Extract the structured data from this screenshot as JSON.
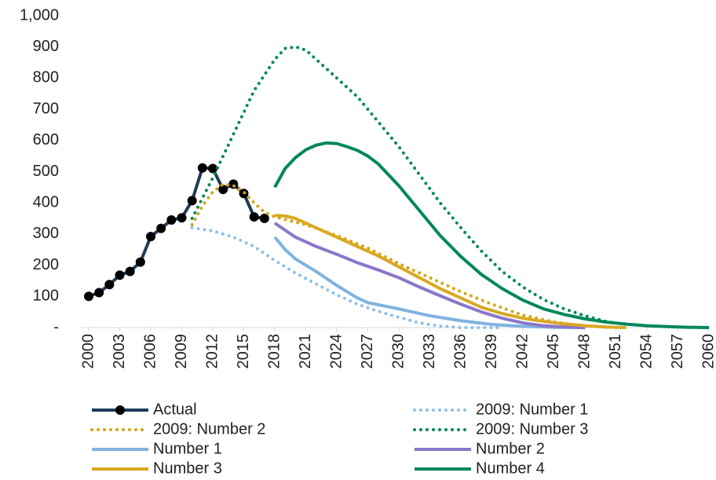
{
  "chart_data": {
    "type": "line",
    "xlim": [
      2000,
      2060
    ],
    "xticks": [
      2000,
      2003,
      2006,
      2009,
      2012,
      2015,
      2018,
      2021,
      2024,
      2027,
      2030,
      2033,
      2036,
      2039,
      2042,
      2045,
      2048,
      2051,
      2054,
      2057,
      2060
    ],
    "ylim": [
      0,
      1000
    ],
    "yticks": [
      {
        "value": 0,
        "label": "-"
      },
      100,
      200,
      300,
      400,
      500,
      600,
      700,
      800,
      900,
      {
        "value": 1000,
        "label": "1,000"
      }
    ],
    "series": [
      {
        "name": "Actual",
        "color": "#1f3b5a",
        "line_style": "solid",
        "marker": "circle",
        "x": [
          2000,
          2001,
          2002,
          2003,
          2004,
          2005,
          2006,
          2007,
          2008,
          2009,
          2010,
          2011,
          2012,
          2013,
          2014,
          2015,
          2016,
          2017
        ],
        "values": [
          100,
          112,
          138,
          168,
          180,
          210,
          292,
          318,
          345,
          352,
          407,
          512,
          510,
          443,
          460,
          430,
          355,
          350
        ]
      },
      {
        "name": "2009: Number 1",
        "color": "#8fbfe6",
        "line_style": "dotted",
        "x": [
          2010,
          2012,
          2014,
          2016,
          2018,
          2020,
          2022,
          2024,
          2026,
          2028,
          2030,
          2032,
          2034,
          2036,
          2040
        ],
        "values": [
          320,
          310,
          290,
          260,
          215,
          175,
          140,
          105,
          75,
          52,
          33,
          15,
          5,
          0,
          0
        ]
      },
      {
        "name": "2009: Number 2",
        "color": "#d4a514",
        "line_style": "dotted",
        "x": [
          2010,
          2011,
          2012,
          2013,
          2014,
          2015,
          2016,
          2017,
          2018,
          2021,
          2024,
          2027,
          2030,
          2033,
          2036,
          2039,
          2042,
          2045,
          2048,
          2051
        ],
        "values": [
          330,
          390,
          435,
          460,
          455,
          435,
          400,
          370,
          355,
          330,
          295,
          255,
          205,
          160,
          115,
          75,
          40,
          18,
          5,
          0
        ]
      },
      {
        "name": "2009: Number 3",
        "color": "#00875a",
        "line_style": "dotted",
        "x": [
          2010,
          2012,
          2014,
          2016,
          2018,
          2019,
          2020,
          2021,
          2022,
          2024,
          2026,
          2028,
          2030,
          2032,
          2034,
          2036,
          2038,
          2040,
          2042,
          2044,
          2046,
          2048,
          2050,
          2051
        ],
        "values": [
          350,
          480,
          620,
          760,
          860,
          895,
          900,
          890,
          860,
          800,
          740,
          660,
          580,
          490,
          400,
          320,
          245,
          180,
          130,
          90,
          60,
          38,
          20,
          14
        ]
      },
      {
        "name": "Number 1",
        "color": "#7fb3e0",
        "line_style": "solid",
        "x": [
          2018,
          2019,
          2020,
          2022,
          2024,
          2026,
          2027,
          2030,
          2033,
          2036,
          2039,
          2042,
          2045,
          2048
        ],
        "values": [
          290,
          250,
          220,
          180,
          135,
          95,
          80,
          60,
          38,
          22,
          10,
          4,
          1,
          0
        ]
      },
      {
        "name": "Number 2",
        "color": "#8a76c9",
        "line_style": "solid",
        "x": [
          2018,
          2020,
          2022,
          2024,
          2026,
          2028,
          2030,
          2032,
          2034,
          2036,
          2038,
          2040,
          2042,
          2044,
          2046,
          2048
        ],
        "values": [
          335,
          290,
          260,
          235,
          208,
          185,
          160,
          130,
          102,
          75,
          50,
          30,
          15,
          6,
          2,
          0
        ]
      },
      {
        "name": "Number 3",
        "color": "#d9a823",
        "line_style": "solid",
        "x": [
          2018,
          2019,
          2020,
          2022,
          2024,
          2026,
          2028,
          2030,
          2032,
          2034,
          2036,
          2038,
          2040,
          2042,
          2044,
          2046,
          2048,
          2050,
          2052
        ],
        "values": [
          360,
          358,
          350,
          320,
          290,
          260,
          230,
          195,
          160,
          125,
          95,
          65,
          45,
          30,
          20,
          12,
          6,
          2,
          0
        ]
      },
      {
        "name": "Number 4",
        "color": "#00875a",
        "line_style": "solid",
        "x": [
          2018,
          2019,
          2020,
          2021,
          2022,
          2023,
          2024,
          2025,
          2026,
          2027,
          2028,
          2030,
          2032,
          2034,
          2036,
          2038,
          2040,
          2042,
          2044,
          2046,
          2048,
          2050,
          2052,
          2054,
          2056,
          2058,
          2060
        ],
        "values": [
          450,
          510,
          545,
          570,
          585,
          592,
          590,
          580,
          568,
          550,
          525,
          455,
          375,
          295,
          228,
          170,
          125,
          88,
          60,
          42,
          28,
          18,
          11,
          6,
          3,
          1,
          0
        ]
      }
    ]
  }
}
